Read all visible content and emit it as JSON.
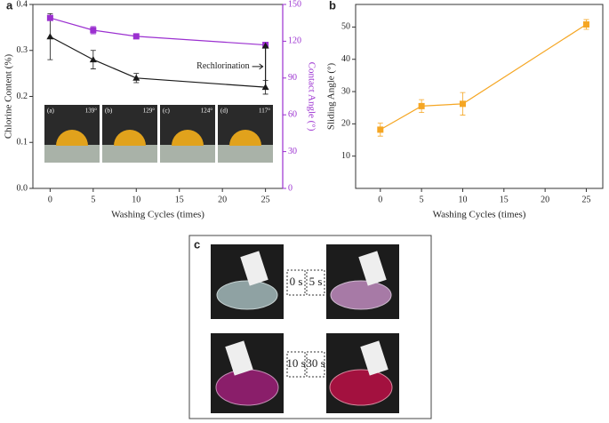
{
  "chart_data": [
    {
      "type": "line",
      "label": "a",
      "xlabel": "Washing Cycles (times)",
      "ylabel": "Chlorine Content (%)",
      "y2label": "Contact Angle (°)",
      "x": [
        0,
        5,
        10,
        25
      ],
      "xlim": [
        -2,
        27
      ],
      "xticks": [
        0,
        5,
        10,
        15,
        20,
        25
      ],
      "ylim": [
        0,
        0.4
      ],
      "yticks": [
        {
          "value": 0,
          "label": "0.0"
        },
        0.1,
        0.2,
        0.3,
        0.4
      ],
      "y2lim": [
        0,
        150
      ],
      "y2ticks": [
        0,
        30,
        60,
        90,
        120,
        150
      ],
      "series": [
        {
          "color": "#1a1a1a",
          "marker": "triangle",
          "values": [
            0.33,
            0.28,
            0.24,
            0.22
          ],
          "errors": [
            0.05,
            0.02,
            0.01,
            0.015
          ]
        },
        {
          "color": "#9b30d0",
          "marker": "square",
          "axis": "y2",
          "values": [
            139,
            129,
            124,
            117
          ],
          "errors": [
            2,
            3,
            1,
            2
          ]
        }
      ],
      "annotations": [
        {
          "text": "Rechlorination",
          "x": 25,
          "y": 0.31
        }
      ],
      "insets": [
        {
          "label": "(a)",
          "text": "139°"
        },
        {
          "label": "(b)",
          "text": "129°"
        },
        {
          "label": "(c)",
          "text": "124°"
        },
        {
          "label": "(d)",
          "text": "117°"
        }
      ]
    },
    {
      "type": "line",
      "label": "b",
      "xlabel": "Washing Cycles (times)",
      "ylabel": "Sliding Angle (°)",
      "x": [
        0,
        5,
        10,
        25
      ],
      "xlim": [
        -3,
        27
      ],
      "xticks": [
        0,
        5,
        10,
        15,
        20,
        25
      ],
      "ylim": [
        0,
        57
      ],
      "yticks": [
        10,
        20,
        30,
        40,
        50
      ],
      "series": [
        {
          "color": "#f5a623",
          "marker": "square",
          "values": [
            18.2,
            25.5,
            26.2,
            50.8
          ],
          "errors": [
            2,
            2,
            3.5,
            1.5
          ]
        }
      ]
    }
  ],
  "panel_c": {
    "label": "c",
    "times": [
      "0 s",
      "5 s",
      "10 s",
      "30 s"
    ]
  }
}
